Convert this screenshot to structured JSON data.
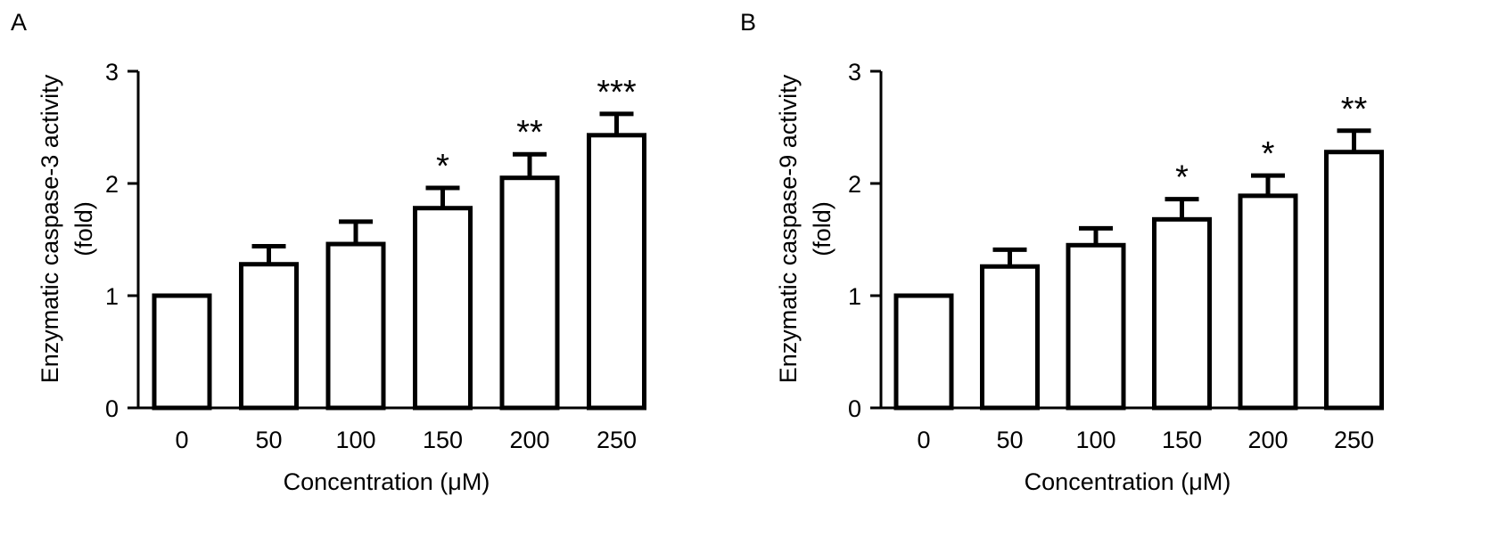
{
  "chart_data": [
    {
      "type": "bar",
      "panel": "A",
      "categories": [
        "0",
        "50",
        "100",
        "150",
        "200",
        "250"
      ],
      "values": [
        1.0,
        1.28,
        1.46,
        1.78,
        2.05,
        2.43
      ],
      "errors": [
        0.0,
        0.16,
        0.2,
        0.18,
        0.21,
        0.19
      ],
      "significance": [
        "",
        "",
        "",
        "*",
        "**",
        "***"
      ],
      "xlabel": "Concentration (μM)",
      "ylabel_lines": [
        "Enzymatic caspase-3 activity",
        "(fold)"
      ],
      "ylim": [
        0,
        3
      ],
      "yticks": [
        "0",
        "1",
        "2",
        "3"
      ]
    },
    {
      "type": "bar",
      "panel": "B",
      "categories": [
        "0",
        "50",
        "100",
        "150",
        "200",
        "250"
      ],
      "values": [
        1.0,
        1.26,
        1.45,
        1.68,
        1.89,
        2.28
      ],
      "errors": [
        0.0,
        0.15,
        0.15,
        0.18,
        0.18,
        0.19
      ],
      "significance": [
        "",
        "",
        "",
        "*",
        "*",
        "**"
      ],
      "xlabel": "Concentration (μM)",
      "ylabel_lines": [
        "Enzymatic caspase-9 activity",
        "(fold)"
      ],
      "ylim": [
        0,
        3
      ],
      "yticks": [
        "0",
        "1",
        "2",
        "3"
      ]
    }
  ]
}
